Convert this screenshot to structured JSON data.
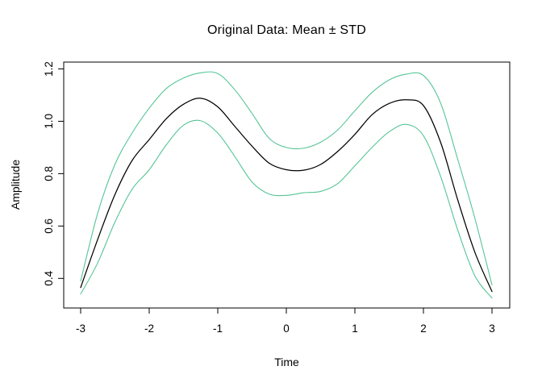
{
  "figure": {
    "background": "#ffffff",
    "axis_color": "#000000",
    "text_color": "#000000"
  },
  "chart_data": {
    "type": "line",
    "title": "Original Data: Mean ± STD",
    "xlabel": "Time",
    "ylabel": "Amplitude",
    "xlim": [
      -3.247,
      3.259
    ],
    "ylim": [
      0.287,
      1.226
    ],
    "xticks": [
      -3,
      -2,
      -1,
      0,
      1,
      2,
      3
    ],
    "xtick_labels": [
      "-3",
      "-2",
      "-1",
      "0",
      "1",
      "2",
      "3"
    ],
    "yticks": [
      0.4,
      0.6,
      0.8,
      1.0,
      1.2
    ],
    "ytick_labels": [
      "0.4",
      "0.6",
      "0.8",
      "1.0",
      "1.2"
    ],
    "grid": false,
    "legend": "none",
    "x": [
      -3,
      -2.75,
      -2.5,
      -2.25,
      -2,
      -1.75,
      -1.5,
      -1.25,
      -1,
      -0.75,
      -0.5,
      -0.25,
      0,
      0.25,
      0.5,
      0.75,
      1,
      1.25,
      1.5,
      1.75,
      2,
      2.25,
      2.5,
      2.75,
      3
    ],
    "series": [
      {
        "name": "Mean",
        "color": "#000000",
        "stroke_width": 1.25,
        "values": [
          0.365,
          0.55,
          0.72,
          0.85,
          0.93,
          1.01,
          1.065,
          1.088,
          1.055,
          0.98,
          0.905,
          0.84,
          0.815,
          0.813,
          0.835,
          0.885,
          0.95,
          1.025,
          1.068,
          1.082,
          1.06,
          0.92,
          0.7,
          0.5,
          0.35
        ]
      },
      {
        "name": "Mean + STD",
        "color": "#56C596",
        "stroke_width": 1.1,
        "values": [
          0.39,
          0.65,
          0.835,
          0.955,
          1.05,
          1.125,
          1.165,
          1.185,
          1.182,
          1.12,
          1.03,
          0.935,
          0.9,
          0.897,
          0.92,
          0.967,
          1.04,
          1.11,
          1.158,
          1.18,
          1.175,
          1.07,
          0.855,
          0.63,
          0.375
        ]
      },
      {
        "name": "Mean - STD",
        "color": "#56C596",
        "stroke_width": 1.1,
        "values": [
          0.34,
          0.46,
          0.615,
          0.74,
          0.815,
          0.91,
          0.985,
          1.002,
          0.955,
          0.865,
          0.768,
          0.722,
          0.717,
          0.727,
          0.732,
          0.762,
          0.83,
          0.9,
          0.96,
          0.988,
          0.945,
          0.79,
          0.585,
          0.41,
          0.325
        ]
      }
    ]
  }
}
